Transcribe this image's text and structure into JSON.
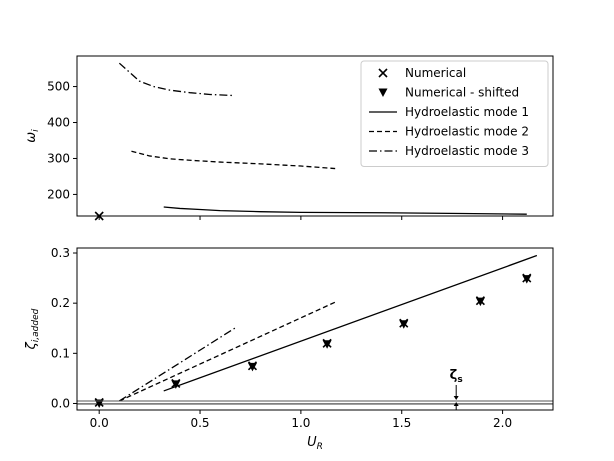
{
  "chart_data": [
    {
      "type": "line",
      "panel": "top",
      "ylabel": "ω_i",
      "xlim": [
        -0.11,
        2.25
      ],
      "ylim": [
        140,
        585
      ],
      "yticks": [
        200,
        300,
        400,
        500
      ],
      "grid": false,
      "legend": {
        "placement": "top-right",
        "entries": [
          "Numerical",
          "Numerical - shifted",
          "Hydroelastic mode 1",
          "Hydroelastic mode 2",
          "Hydroelastic mode 3"
        ]
      },
      "series": [
        {
          "name": "Numerical",
          "marker": "x",
          "x": [
            0.0
          ],
          "y": [
            140
          ]
        },
        {
          "name": "Hydroelastic mode 1",
          "style": "solid",
          "x": [
            0.32,
            0.4,
            0.5,
            0.6,
            0.8,
            1.0,
            1.4,
            1.8,
            2.12
          ],
          "y": [
            165,
            161,
            158,
            155,
            152,
            150,
            149,
            147,
            145
          ]
        },
        {
          "name": "Hydroelastic mode 2",
          "style": "dashed",
          "x": [
            0.16,
            0.25,
            0.35,
            0.45,
            0.6,
            0.8,
            1.0,
            1.17
          ],
          "y": [
            320,
            307,
            299,
            295,
            290,
            285,
            279,
            272
          ]
        },
        {
          "name": "Hydroelastic mode 3",
          "style": "dashdot",
          "x": [
            0.1,
            0.15,
            0.2,
            0.27,
            0.35,
            0.45,
            0.55,
            0.67
          ],
          "y": [
            565,
            540,
            515,
            500,
            490,
            483,
            478,
            475
          ]
        }
      ]
    },
    {
      "type": "line",
      "panel": "bottom",
      "xlabel": "U_R",
      "ylabel": "ζ_i,added",
      "xlim": [
        -0.11,
        2.25
      ],
      "ylim": [
        -0.013,
        0.31
      ],
      "xticks": [
        0.0,
        0.5,
        1.0,
        1.5,
        2.0
      ],
      "yticks": [
        0.0,
        0.1,
        0.2,
        0.3
      ],
      "grid": false,
      "annotations": [
        {
          "text": "ζs",
          "x": 1.77,
          "y": 0.005
        }
      ],
      "series": [
        {
          "name": "Numerical",
          "marker": "x",
          "x": [
            0.0,
            0.38,
            0.76,
            1.13,
            1.51,
            1.89,
            2.12
          ],
          "y": [
            0.002,
            0.04,
            0.075,
            0.12,
            0.16,
            0.205,
            0.25
          ]
        },
        {
          "name": "Numerical - shifted",
          "marker": "triangle-down",
          "x": [
            0.0,
            0.38,
            0.76,
            1.13,
            1.51,
            1.89,
            2.12
          ],
          "y": [
            0.0,
            0.038,
            0.073,
            0.118,
            0.158,
            0.203,
            0.248
          ]
        },
        {
          "name": "Hydroelastic mode 1",
          "style": "solid",
          "x": [
            0.32,
            2.17
          ],
          "y": [
            0.025,
            0.295
          ]
        },
        {
          "name": "Hydroelastic mode 2",
          "style": "dashed",
          "x": [
            0.1,
            1.17
          ],
          "y": [
            0.005,
            0.202
          ]
        },
        {
          "name": "Hydroelastic mode 3",
          "style": "dashdot",
          "x": [
            0.1,
            0.68
          ],
          "y": [
            0.005,
            0.152
          ]
        },
        {
          "name": "ζs reference",
          "style": "solid-gray",
          "x": [
            -0.11,
            2.25
          ],
          "y": [
            0.005,
            0.005
          ]
        },
        {
          "name": "zero baseline",
          "style": "solid-thin",
          "x": [
            -0.11,
            2.25
          ],
          "y": [
            -0.001,
            -0.001
          ]
        }
      ]
    }
  ]
}
